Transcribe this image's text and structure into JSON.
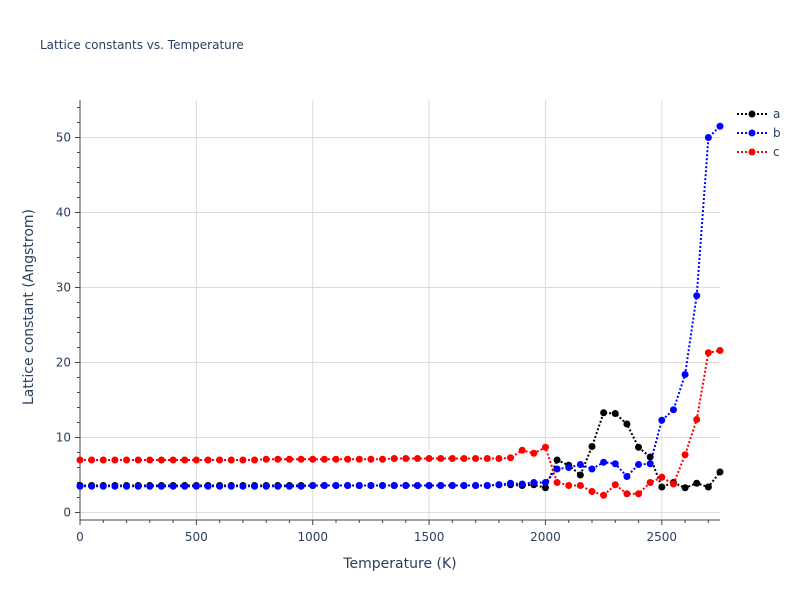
{
  "chart_data": {
    "type": "line",
    "title": "Lattice constants vs. Temperature",
    "xlabel": "Temperature (K)",
    "ylabel": "Lattice constant (Angstrom)",
    "xlim": [
      0,
      2750
    ],
    "ylim": [
      -1,
      55
    ],
    "xticks": [
      0,
      500,
      1000,
      1500,
      2000,
      2500
    ],
    "yticks": [
      0,
      10,
      20,
      30,
      40,
      50
    ],
    "grid": true,
    "legend": "right",
    "x": [
      0,
      50,
      100,
      150,
      200,
      250,
      300,
      350,
      400,
      450,
      500,
      550,
      600,
      650,
      700,
      750,
      800,
      850,
      900,
      950,
      1000,
      1050,
      1100,
      1150,
      1200,
      1250,
      1300,
      1350,
      1400,
      1450,
      1500,
      1550,
      1600,
      1650,
      1700,
      1750,
      1800,
      1850,
      1900,
      1950,
      2000,
      2050,
      2100,
      2150,
      2200,
      2250,
      2300,
      2350,
      2400,
      2450,
      2500,
      2550,
      2600,
      2650,
      2700,
      2750
    ],
    "series": [
      {
        "name": "a",
        "color": "#000000",
        "values": [
          3.6,
          3.6,
          3.6,
          3.6,
          3.6,
          3.6,
          3.6,
          3.6,
          3.6,
          3.6,
          3.6,
          3.6,
          3.6,
          3.6,
          3.6,
          3.6,
          3.6,
          3.6,
          3.6,
          3.6,
          3.6,
          3.6,
          3.6,
          3.6,
          3.6,
          3.6,
          3.6,
          3.6,
          3.6,
          3.6,
          3.6,
          3.6,
          3.6,
          3.6,
          3.6,
          3.6,
          3.7,
          3.7,
          3.6,
          3.7,
          3.3,
          7.0,
          6.3,
          5.0,
          8.8,
          13.3,
          13.2,
          11.8,
          8.7,
          7.4,
          3.4,
          4.0,
          3.3,
          3.9,
          3.4,
          5.4
        ]
      },
      {
        "name": "b",
        "color": "#0000ff",
        "values": [
          3.5,
          3.5,
          3.5,
          3.5,
          3.5,
          3.5,
          3.5,
          3.5,
          3.5,
          3.5,
          3.5,
          3.5,
          3.5,
          3.5,
          3.5,
          3.5,
          3.5,
          3.5,
          3.5,
          3.5,
          3.6,
          3.6,
          3.6,
          3.6,
          3.6,
          3.6,
          3.6,
          3.6,
          3.6,
          3.6,
          3.6,
          3.6,
          3.6,
          3.6,
          3.6,
          3.6,
          3.7,
          3.9,
          3.8,
          4.0,
          4.0,
          5.8,
          6.0,
          6.4,
          5.8,
          6.7,
          6.5,
          4.8,
          6.4,
          6.5,
          12.3,
          13.7,
          18.4,
          28.9,
          50.0,
          51.5
        ]
      },
      {
        "name": "c",
        "color": "#ff0000",
        "values": [
          7.0,
          7.0,
          7.0,
          7.0,
          7.0,
          7.0,
          7.0,
          7.0,
          7.0,
          7.0,
          7.0,
          7.0,
          7.0,
          7.0,
          7.0,
          7.0,
          7.1,
          7.1,
          7.1,
          7.1,
          7.1,
          7.1,
          7.1,
          7.1,
          7.1,
          7.1,
          7.1,
          7.2,
          7.2,
          7.2,
          7.2,
          7.2,
          7.2,
          7.2,
          7.2,
          7.2,
          7.2,
          7.3,
          8.3,
          7.9,
          8.7,
          4.0,
          3.6,
          3.6,
          2.8,
          2.3,
          3.7,
          2.5,
          2.5,
          4.0,
          4.7,
          3.8,
          7.7,
          12.4,
          21.3,
          21.6
        ]
      }
    ]
  }
}
